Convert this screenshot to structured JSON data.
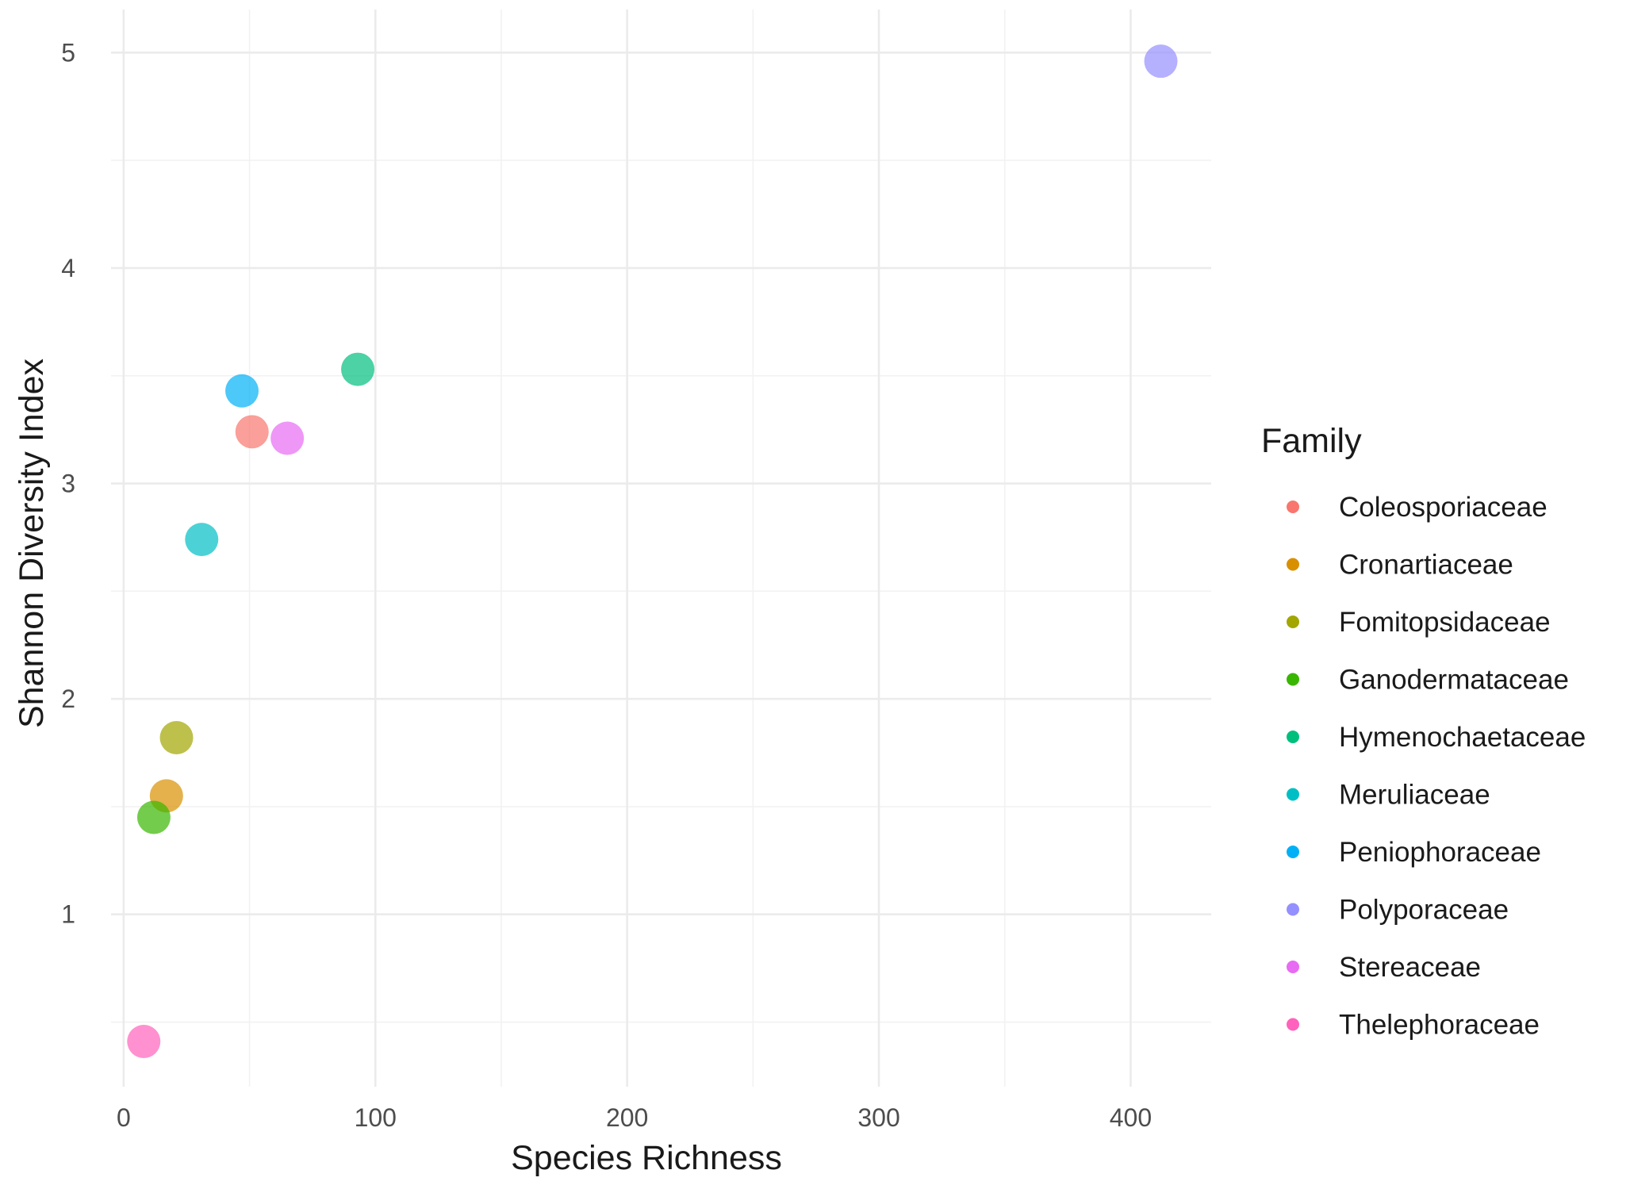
{
  "chart_data": {
    "type": "scatter",
    "title": "",
    "xlabel": "Species Richness",
    "ylabel": "Shannon Diversity Index",
    "xlim": [
      -5,
      432
    ],
    "ylim": [
      0.2,
      5.2
    ],
    "xticks": [
      0,
      100,
      200,
      300,
      400
    ],
    "yticks": [
      1,
      2,
      3,
      4,
      5
    ],
    "xtick_labels": [
      "0",
      "100",
      "200",
      "300",
      "400"
    ],
    "ytick_labels": [
      "1",
      "2",
      "3",
      "4",
      "5"
    ],
    "grid": true,
    "legend": {
      "title": "Family",
      "position": "right"
    },
    "series": [
      {
        "name": "Coleosporiaceae",
        "color": "#F8766D",
        "x": 51,
        "y": 3.24
      },
      {
        "name": "Cronartiaceae",
        "color": "#D89000",
        "x": 17,
        "y": 1.55
      },
      {
        "name": "Fomitopsidaceae",
        "color": "#A3A500",
        "x": 21,
        "y": 1.82
      },
      {
        "name": "Ganodermataceae",
        "color": "#39B600",
        "x": 12,
        "y": 1.45
      },
      {
        "name": "Hymenochaetaceae",
        "color": "#00BF7D",
        "x": 93,
        "y": 3.53
      },
      {
        "name": "Meruliaceae",
        "color": "#00BFC4",
        "x": 31,
        "y": 2.74
      },
      {
        "name": "Peniophoraceae",
        "color": "#00B0F6",
        "x": 47,
        "y": 3.43
      },
      {
        "name": "Polyporaceae",
        "color": "#9590FF",
        "x": 412,
        "y": 4.96
      },
      {
        "name": "Stereaceae",
        "color": "#E76BF3",
        "x": 65,
        "y": 3.21
      },
      {
        "name": "Thelephoraceae",
        "color": "#FF62BC",
        "x": 8,
        "y": 0.41
      }
    ]
  }
}
